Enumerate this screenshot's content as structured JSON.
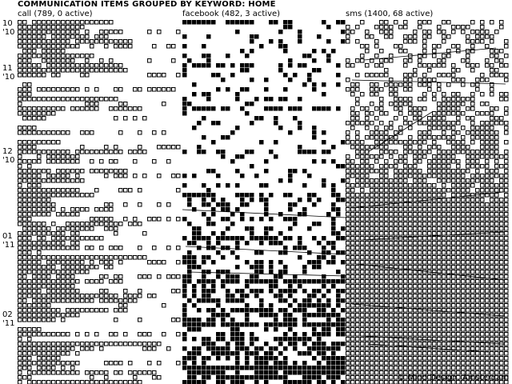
{
  "title": "COMMUNICATION ITEMS GROUPED BY KEYWORD: HOME",
  "credit": "© Mind Design, Amsterdam",
  "chart_data": {
    "type": "heatmap",
    "columns": [
      {
        "key": "call",
        "label": "call (789, 0 active)",
        "name": "call",
        "total": 789,
        "active": 0,
        "style": "outline"
      },
      {
        "key": "facebook",
        "label": "facebook (482, 3 active)",
        "name": "facebook",
        "total": 482,
        "active": 3,
        "style": "filled"
      },
      {
        "key": "sms",
        "label": "sms (1400, 68 active)",
        "name": "sms",
        "total": 1400,
        "active": 68,
        "style": "outline"
      }
    ],
    "months": [
      {
        "label": "10\n'10",
        "month": "Oct 2010"
      },
      {
        "label": "11\n'10",
        "month": "Nov 2010"
      },
      {
        "label": "12\n'10",
        "month": "Dec 2010"
      },
      {
        "label": "01\n'11",
        "month": "Jan 2011"
      },
      {
        "label": "02\n'11",
        "month": "Feb 2011"
      }
    ],
    "colors": {
      "cell": "#000000",
      "background": "#ffffff"
    }
  }
}
